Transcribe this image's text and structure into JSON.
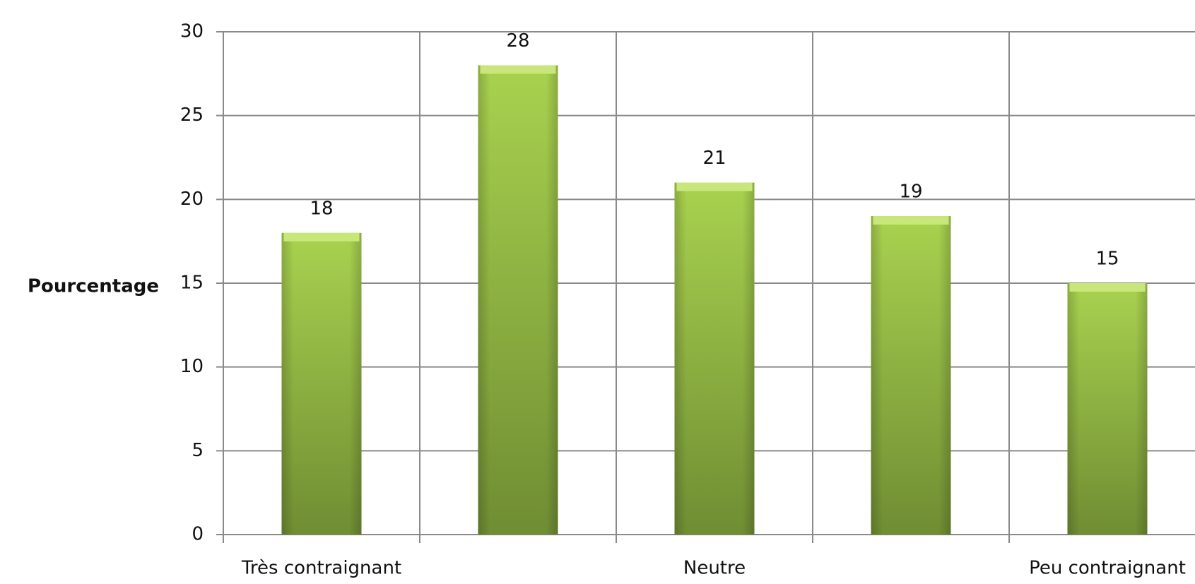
{
  "chart_data": {
    "type": "bar",
    "y_label": "Pourcentage",
    "categories": [
      "Très contraignant",
      null,
      "Neutre",
      null,
      "Peu contraignant"
    ],
    "values": [
      18,
      28,
      21,
      19,
      15
    ],
    "color": "#8db33f",
    "ylim": [
      0,
      30
    ],
    "yticks": [
      0,
      5,
      10,
      15,
      20,
      25,
      30
    ],
    "grid": true
  }
}
